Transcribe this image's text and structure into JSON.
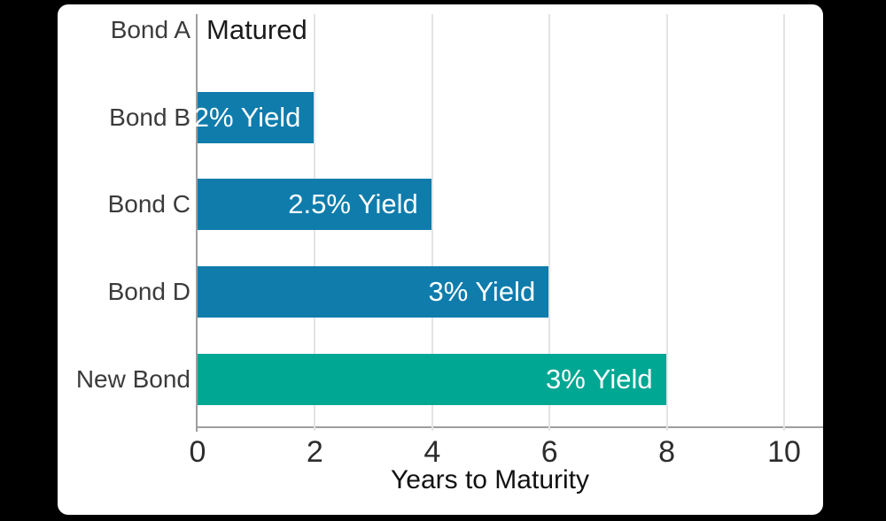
{
  "colors": {
    "page_background": "#000000",
    "card_background": "#ffffff",
    "bar_blue": "#0F7CAC",
    "bar_teal": "#00A793",
    "gridline": "#e4e4e4",
    "axis_line": "#9e9e9e"
  },
  "chart_data": {
    "type": "bar",
    "orientation": "horizontal",
    "title": "",
    "categories": [
      "Bond A",
      "Bond B",
      "Bond C",
      "Bond D",
      "New Bond"
    ],
    "values": [
      0,
      2,
      4,
      6,
      8
    ],
    "bar_labels": [
      "Matured",
      "2% Yield",
      "2.5% Yield",
      "3% Yield",
      "3% Yield"
    ],
    "bar_colors": [
      null,
      "#0F7CAC",
      "#0F7CAC",
      "#0F7CAC",
      "#00A793"
    ],
    "xlabel": "Years to Maturity",
    "ylabel": "",
    "xticks": [
      0,
      2,
      4,
      6,
      8,
      10
    ],
    "xtick_labels": [
      "0",
      "2",
      "4",
      "6",
      "8",
      "10"
    ],
    "xlim": [
      0,
      10
    ],
    "grid": true,
    "legend": "none",
    "bar_label_position": "inside-right",
    "zero_value_annotation": "Matured"
  }
}
